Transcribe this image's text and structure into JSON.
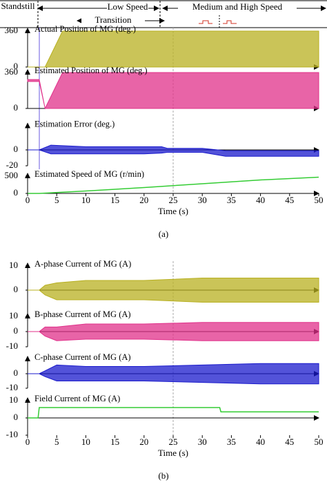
{
  "phases": [
    "Standstill",
    "Low Speed",
    "Transition",
    "Medium and High Speed"
  ],
  "panel_labels": [
    "(a)",
    "(b)"
  ],
  "chart_data": [
    {
      "type": "area",
      "title": "Actual Position of MG (deg.)",
      "color": "#b8b020",
      "xlim": [
        0,
        50
      ],
      "ylim": [
        0,
        360
      ],
      "yticks": [
        0,
        360
      ],
      "x": [
        0,
        2,
        3,
        6,
        10,
        15,
        20,
        25,
        30,
        35,
        40,
        45,
        50
      ],
      "series": [
        {
          "values": [
            0,
            0,
            0,
            360,
            360,
            360,
            360,
            360,
            360,
            360,
            360,
            360,
            360
          ]
        },
        {
          "values": [
            0,
            0,
            0,
            0,
            0,
            0,
            0,
            0,
            0,
            0,
            0,
            0,
            0
          ]
        }
      ]
    },
    {
      "type": "area",
      "title": "Estimated Position of MG (deg.)",
      "color": "#e0308a",
      "xlim": [
        0,
        50
      ],
      "ylim": [
        0,
        360
      ],
      "yticks": [
        0,
        360
      ],
      "x": [
        0,
        2,
        3,
        6,
        10,
        15,
        20,
        25,
        30,
        35,
        40,
        45,
        50
      ],
      "series": [
        {
          "values": [
            290,
            290,
            0,
            360,
            360,
            360,
            360,
            360,
            360,
            360,
            360,
            360,
            360
          ]
        },
        {
          "values": [
            270,
            270,
            0,
            0,
            0,
            0,
            0,
            0,
            0,
            0,
            0,
            0,
            0
          ]
        }
      ]
    },
    {
      "type": "area",
      "title": "Estimation Error (deg.)",
      "color": "#1a1acc",
      "xlim": [
        0,
        50
      ],
      "ylim": [
        -20,
        30
      ],
      "yticks": [
        -20,
        0
      ],
      "x": [
        0,
        2,
        4,
        10,
        15,
        20,
        23,
        24,
        30,
        34,
        40,
        45,
        50
      ],
      "series": [
        {
          "values": [
            0,
            0,
            6,
            4,
            4,
            4,
            4,
            2,
            2,
            -1,
            -1,
            -1,
            -1
          ]
        },
        {
          "values": [
            0,
            0,
            -5,
            -5,
            -5,
            -5,
            -4,
            -3,
            -3,
            -8,
            -8,
            -8,
            -8
          ]
        }
      ]
    },
    {
      "type": "line",
      "title": "Estimated Speed of MG (r/min)",
      "color": "#33cc33",
      "xlim": [
        0,
        50
      ],
      "ylim": [
        0,
        500
      ],
      "yticks": [
        0,
        500
      ],
      "x": [
        0,
        2,
        10,
        20,
        30,
        40,
        50
      ],
      "values": [
        0,
        0,
        70,
        170,
        280,
        390,
        470
      ],
      "xticks": [
        0,
        5,
        10,
        15,
        20,
        25,
        30,
        35,
        40,
        45,
        50
      ],
      "x_label": "Time (s)"
    },
    {
      "type": "area",
      "title": "A-phase Current of MG (A)",
      "color": "#b8b020",
      "xlim": [
        0,
        50
      ],
      "ylim": [
        -10,
        10
      ],
      "yticks": [
        0,
        10
      ],
      "x": [
        0,
        2,
        3,
        5,
        10,
        20,
        30,
        40,
        50
      ],
      "series": [
        {
          "values": [
            0,
            0,
            2,
            3,
            4,
            4,
            5,
            5,
            5
          ]
        },
        {
          "values": [
            0,
            0,
            -2,
            -4,
            -4,
            -4,
            -5,
            -5,
            -5
          ]
        }
      ]
    },
    {
      "type": "area",
      "title": "B-phase Current of MG (A)",
      "color": "#e0308a",
      "xlim": [
        0,
        50
      ],
      "ylim": [
        -10,
        10
      ],
      "yticks": [
        -10,
        0,
        10
      ],
      "x": [
        0,
        2,
        3,
        5,
        10,
        20,
        30,
        40,
        50
      ],
      "series": [
        {
          "values": [
            0,
            0,
            3,
            3,
            5,
            5,
            6,
            6,
            6
          ]
        },
        {
          "values": [
            0,
            0,
            -3,
            -6,
            -5,
            -5,
            -6,
            -6,
            -6
          ]
        }
      ]
    },
    {
      "type": "area",
      "title": "C-phase Current of MG (A)",
      "color": "#1a1acc",
      "xlim": [
        0,
        50
      ],
      "ylim": [
        -10,
        10
      ],
      "yticks": [
        -10,
        0
      ],
      "x": [
        0,
        2,
        3,
        5,
        10,
        20,
        30,
        40,
        50
      ],
      "series": [
        {
          "values": [
            0,
            0,
            2,
            6,
            5,
            5,
            6,
            7,
            7
          ]
        },
        {
          "values": [
            0,
            0,
            -2,
            -5,
            -5,
            -5,
            -6,
            -7,
            -7
          ]
        }
      ]
    },
    {
      "type": "line",
      "title": "Field Current of MG (A)",
      "color": "#33cc33",
      "xlim": [
        0,
        50
      ],
      "ylim": [
        -10,
        10
      ],
      "yticks": [
        -10,
        0,
        10
      ],
      "x": [
        0,
        1.8,
        2,
        33,
        33.2,
        50
      ],
      "values": [
        0,
        0,
        6,
        6,
        3.5,
        3.5
      ],
      "xticks": [
        0,
        5,
        10,
        15,
        20,
        25,
        30,
        35,
        40,
        45,
        50
      ],
      "x_label": "Time (s)"
    }
  ]
}
